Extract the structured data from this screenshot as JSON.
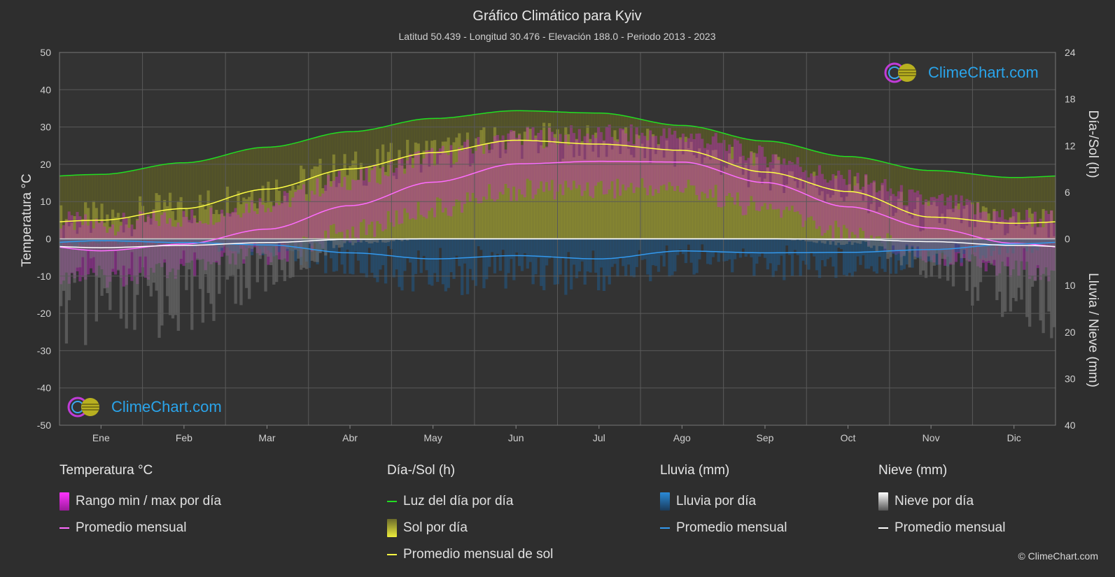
{
  "title": "Gráfico Climático para Kyiv",
  "subtitle": "Latitud 50.439 - Longitud 30.476 - Elevación 188.0 - Periodo 2013 - 2023",
  "brand": "ClimeChart.com",
  "copyright": "© ClimeChart.com",
  "colors": {
    "temp_range": "#d020d0",
    "temp_avg": "#ff6cff",
    "daylight": "#22dd22",
    "sun_fill": "#b8b83a",
    "sun_avg": "#ffff44",
    "rain": "#2a8ad8",
    "rain_avg": "#3399ee",
    "snow": "#bbbbbb",
    "snow_avg": "#ffffff"
  },
  "legend": [
    {
      "header": "Temperatura °C",
      "items": [
        {
          "type": "box",
          "color": "#d020d0",
          "label": "Rango min / max por día"
        },
        {
          "type": "line",
          "color": "#ff6cff",
          "label": "Promedio mensual"
        }
      ]
    },
    {
      "header": "Día-/Sol (h)",
      "items": [
        {
          "type": "line",
          "color": "#22dd22",
          "label": "Luz del día por día"
        },
        {
          "type": "box",
          "color": "#c8c83c",
          "label": "Sol por día"
        },
        {
          "type": "line",
          "color": "#ffff44",
          "label": "Promedio mensual de sol"
        }
      ]
    },
    {
      "header": "Lluvia (mm)",
      "items": [
        {
          "type": "box",
          "color": "#2a8ad8",
          "label": "Lluvia por día"
        },
        {
          "type": "line",
          "color": "#3399ee",
          "label": "Promedio mensual"
        }
      ]
    },
    {
      "header": "Nieve (mm)",
      "items": [
        {
          "type": "box",
          "color": "#dddddd",
          "label": "Nieve por día"
        },
        {
          "type": "line",
          "color": "#ffffff",
          "label": "Promedio mensual"
        }
      ]
    }
  ],
  "chart_data": {
    "type": "line",
    "categories": [
      "Ene",
      "Feb",
      "Mar",
      "Abr",
      "May",
      "Jun",
      "Jul",
      "Ago",
      "Sep",
      "Oct",
      "Nov",
      "Dic"
    ],
    "y_left": {
      "label": "Temperatura °C",
      "range": [
        -50,
        50
      ],
      "ticks": [
        50,
        40,
        30,
        20,
        10,
        0,
        -10,
        -20,
        -30,
        -40,
        -50
      ]
    },
    "y_right_top": {
      "label": "Día-/Sol (h)",
      "range": [
        0,
        24
      ],
      "ticks": [
        24,
        18,
        12,
        6,
        0
      ]
    },
    "y_right_bottom": {
      "label": "Lluvia / Nieve (mm)",
      "range": [
        0,
        40
      ],
      "ticks": [
        0,
        10,
        20,
        30,
        40
      ]
    },
    "grid": true,
    "series": [
      {
        "name": "Luz del día por día",
        "unit": "h",
        "values": [
          8.3,
          9.8,
          11.8,
          13.8,
          15.5,
          16.5,
          16.2,
          14.6,
          12.6,
          10.6,
          8.8,
          7.9
        ]
      },
      {
        "name": "Promedio mensual de sol",
        "unit": "h",
        "values": [
          2.4,
          3.9,
          6.4,
          9.0,
          11.1,
          12.7,
          12.2,
          11.4,
          8.6,
          6.1,
          2.8,
          2.0
        ]
      },
      {
        "name": "Promedio mensual",
        "unit": "°C",
        "values": [
          -3.2,
          -1.4,
          2.6,
          8.9,
          15.2,
          20.1,
          20.8,
          20.6,
          15.1,
          8.6,
          2.9,
          -1.2
        ]
      },
      {
        "name": "Promedio mensual",
        "unit": "mm",
        "kind": "rain",
        "values": [
          0.4,
          0.8,
          1.3,
          3.0,
          4.3,
          3.6,
          4.3,
          2.6,
          3.0,
          2.9,
          2.3,
          1.1
        ]
      },
      {
        "name": "Promedio mensual",
        "unit": "mm",
        "kind": "snow",
        "values": [
          1.9,
          1.4,
          0.8,
          0.1,
          0.0,
          0.0,
          0.0,
          0.0,
          0.0,
          0.1,
          0.6,
          1.4
        ]
      }
    ]
  }
}
